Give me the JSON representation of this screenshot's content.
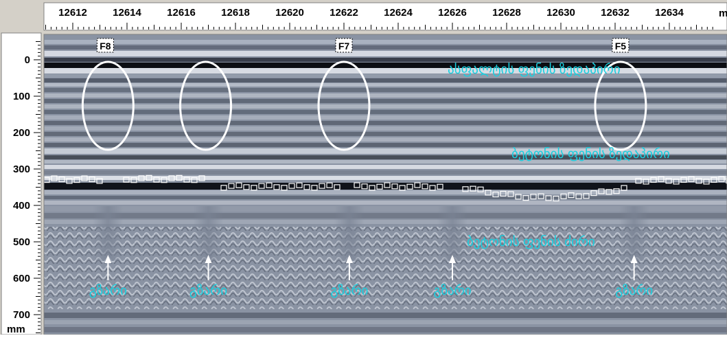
{
  "top_axis": {
    "ticks": [
      "12612",
      "12614",
      "12616",
      "12618",
      "12620",
      "12622",
      "12624",
      "12626",
      "12628",
      "12630",
      "12632",
      "12634"
    ],
    "unit": "m"
  },
  "left_axis": {
    "ticks": [
      "0",
      "100",
      "200",
      "300",
      "400",
      "500",
      "600",
      "700"
    ],
    "unit": "mm"
  },
  "markers": [
    {
      "label": "F8",
      "pos": 12613.2
    },
    {
      "label": "F7",
      "pos": 12622.0
    },
    {
      "label": "F5",
      "pos": 12632.2
    }
  ],
  "layer_labels": {
    "asphalt_top": "ასფალტის ფენის ზედაპირი",
    "concrete_top": "ბეტონის ფენის ზედაპირი",
    "concrete_bottom": "ბეტონის ფენის ძირი"
  },
  "rebar_label": "გზარი",
  "rebar_positions": [
    12613.3,
    12617.0,
    12622.2,
    12626.0,
    12632.7
  ],
  "highlight_positions": [
    12613.3,
    12616.9,
    12622.0,
    12632.2
  ],
  "colors": {
    "label": "#18d0e0",
    "radar_base": "#8a93a3",
    "frame": "#d4d0c8"
  }
}
